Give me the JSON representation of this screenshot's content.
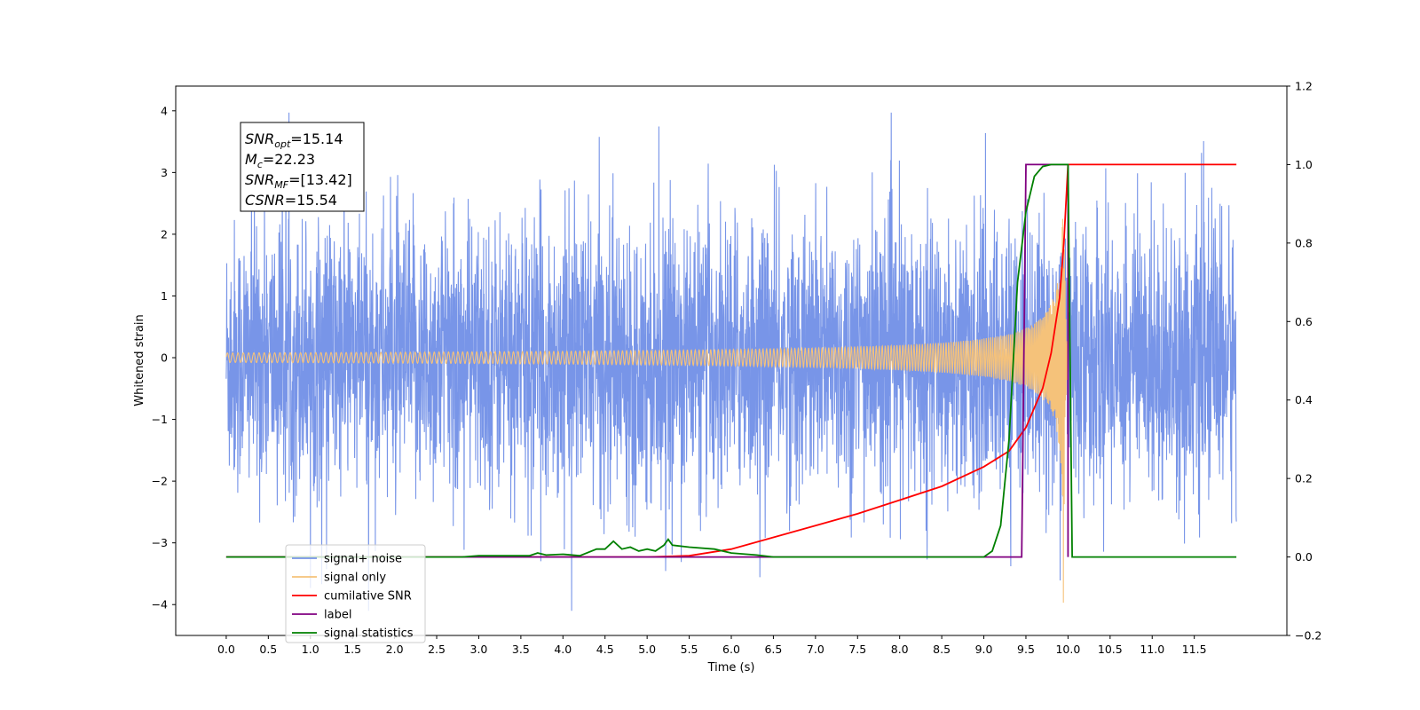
{
  "chart_data": {
    "type": "line",
    "title": "",
    "xlabel": "Time (s)",
    "ylabel": "Whitened strain",
    "y2label": "",
    "xlim": [
      -0.6,
      12.6
    ],
    "ylim": [
      -4.5,
      4.4
    ],
    "y2lim": [
      -0.2,
      1.2
    ],
    "x_ticks": [
      0.0,
      0.5,
      1.0,
      1.5,
      2.0,
      2.5,
      3.0,
      3.5,
      4.0,
      4.5,
      5.0,
      5.5,
      6.0,
      6.5,
      7.0,
      7.5,
      8.0,
      8.5,
      9.0,
      9.5,
      10.0,
      10.5,
      11.0,
      11.5
    ],
    "x_tick_labels": [
      "0.0",
      "0.5",
      "1.0",
      "1.5",
      "2.0",
      "2.5",
      "3.0",
      "3.5",
      "4.0",
      "4.5",
      "5.0",
      "5.5",
      "6.0",
      "6.5",
      "7.0",
      "7.5",
      "8.0",
      "8.5",
      "9.0",
      "9.5",
      "10.0",
      "10.5",
      "11.0",
      "11.5"
    ],
    "y_ticks": [
      -4,
      -3,
      -2,
      -1,
      0,
      1,
      2,
      3,
      4
    ],
    "y_tick_labels": [
      "−4",
      "−3",
      "−2",
      "−1",
      "0",
      "1",
      "2",
      "3",
      "4"
    ],
    "y2_ticks": [
      -0.2,
      0.0,
      0.2,
      0.4,
      0.6,
      0.8,
      1.0,
      1.2
    ],
    "y2_tick_labels": [
      "−0.2",
      "0.0",
      "0.2",
      "0.4",
      "0.6",
      "0.8",
      "1.0",
      "1.2"
    ],
    "grid": false,
    "legend_position": "bottom-left",
    "annotation": {
      "lines": [
        {
          "symbol": "SNR",
          "sub": "opt",
          "value": "=15.14"
        },
        {
          "symbol": "M",
          "sub": "c",
          "value": "=22.23"
        },
        {
          "symbol": "SNR",
          "sub": "MF",
          "value": "=[13.42]"
        },
        {
          "symbol": "CSNR",
          "sub": "",
          "value": "=15.54"
        }
      ]
    },
    "series": [
      {
        "name": "signal+ noise",
        "axis": "left",
        "color": "#7895e8",
        "kind": "noise",
        "x_range": [
          0.0,
          12.0
        ],
        "typical_amplitude": 2.0,
        "peak_min": -4.1,
        "peak_max": 3.97
      },
      {
        "name": "signal only",
        "axis": "left",
        "color": "#f5c27a",
        "kind": "chirp",
        "x_range": [
          0.0,
          10.0
        ],
        "merger_time": 9.95,
        "peak_amplitude": 3.2
      },
      {
        "name": "cumilative SNR",
        "axis": "right",
        "color": "#ff0000",
        "x": [
          0.0,
          5.0,
          5.5,
          6.0,
          6.5,
          7.0,
          7.5,
          8.0,
          8.5,
          9.0,
          9.3,
          9.5,
          9.7,
          9.8,
          9.9,
          9.95,
          10.0,
          12.0
        ],
        "y": [
          0.0,
          0.0,
          0.003,
          0.02,
          0.05,
          0.08,
          0.11,
          0.145,
          0.18,
          0.23,
          0.27,
          0.33,
          0.43,
          0.52,
          0.66,
          0.8,
          1.0,
          1.0
        ]
      },
      {
        "name": "label",
        "axis": "right",
        "color": "#800080",
        "x": [
          0.0,
          9.45,
          9.5,
          10.0,
          10.0
        ],
        "y": [
          0.0,
          0.0,
          1.0,
          1.0,
          0.0
        ]
      },
      {
        "name": "signal statistics",
        "axis": "right",
        "color": "#008000",
        "x": [
          0.0,
          2.8,
          3.0,
          3.6,
          3.7,
          3.8,
          4.0,
          4.2,
          4.4,
          4.5,
          4.6,
          4.7,
          4.8,
          4.9,
          5.0,
          5.1,
          5.2,
          5.25,
          5.3,
          5.5,
          5.8,
          6.0,
          6.3,
          6.5,
          9.0,
          9.1,
          9.2,
          9.3,
          9.4,
          9.5,
          9.6,
          9.7,
          9.8,
          9.9,
          10.0,
          10.05,
          12.0
        ],
        "y": [
          0.0,
          0.0,
          0.003,
          0.003,
          0.01,
          0.005,
          0.007,
          0.003,
          0.02,
          0.02,
          0.04,
          0.02,
          0.025,
          0.015,
          0.02,
          0.015,
          0.03,
          0.045,
          0.03,
          0.025,
          0.02,
          0.01,
          0.005,
          0.0,
          0.0,
          0.015,
          0.08,
          0.3,
          0.7,
          0.88,
          0.97,
          0.995,
          1.0,
          1.0,
          1.0,
          0.0,
          0.0
        ]
      }
    ],
    "legend": [
      {
        "name": "signal+ noise",
        "color": "#7895e8"
      },
      {
        "name": "signal only",
        "color": "#f5c27a"
      },
      {
        "name": "cumilative SNR",
        "color": "#ff0000"
      },
      {
        "name": "label",
        "color": "#800080"
      },
      {
        "name": "signal statistics",
        "color": "#008000"
      }
    ]
  }
}
